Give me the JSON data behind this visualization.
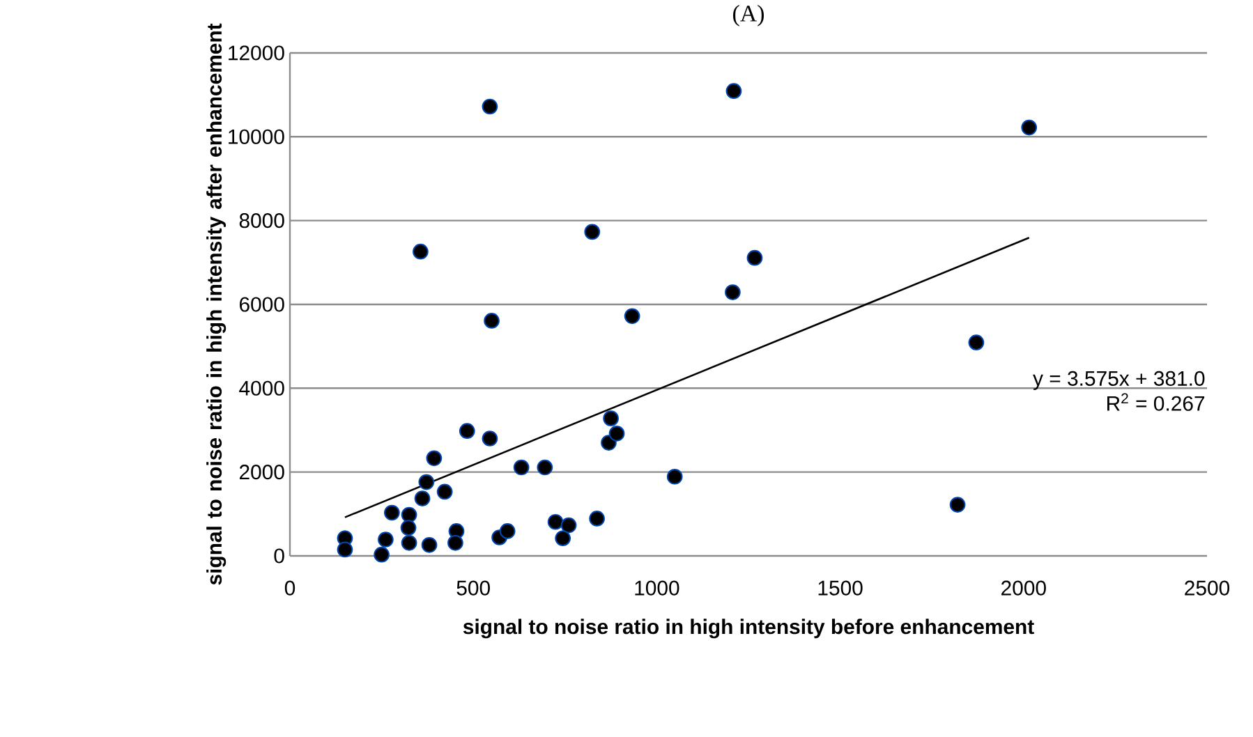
{
  "chart_data": {
    "type": "scatter",
    "title": "(A)",
    "xlabel": "signal to noise ratio in high intensity before enhancement",
    "ylabel": "signal to noise ratio in high intensity after enhancement",
    "xlim": [
      0,
      2500
    ],
    "xticks": [
      0,
      500,
      1000,
      1500,
      2000,
      2500
    ],
    "ylim": [
      0,
      12000
    ],
    "yticks": [
      0,
      2000,
      4000,
      6000,
      8000,
      10000,
      12000
    ],
    "grid": "y",
    "marker": "circle",
    "annotations": [
      "y = 3.575x + 381.0",
      "R$^{2}$ = 0.267"
    ],
    "series": [
      {
        "color": "#000000",
        "x": [
          150,
          150,
          250,
          261,
          278,
          325,
          323,
          325,
          361,
          372,
          380,
          393,
          422,
          356,
          454,
          451,
          483,
          545,
          545,
          550,
          571,
          593,
          631,
          695,
          724,
          760,
          744,
          824,
          837,
          869,
          875,
          891,
          933,
          1049,
          1210,
          1207,
          1267,
          2015,
          1871,
          1820
        ],
        "values": [
          420,
          150,
          30,
          390,
          1030,
          980,
          670,
          310,
          1370,
          1760,
          260,
          2330,
          1530,
          7260,
          590,
          310,
          2980,
          2800,
          10720,
          5610,
          440,
          590,
          2110,
          2110,
          810,
          730,
          420,
          7730,
          890,
          2700,
          3280,
          2920,
          5720,
          1890,
          11090,
          6290,
          7110,
          10220,
          5090,
          1220
        ]
      },
      {
        "type": "line",
        "color": "#000000",
        "marker": "none",
        "x": [
          150,
          2015
        ],
        "values": [
          920,
          7590
        ]
      }
    ]
  }
}
